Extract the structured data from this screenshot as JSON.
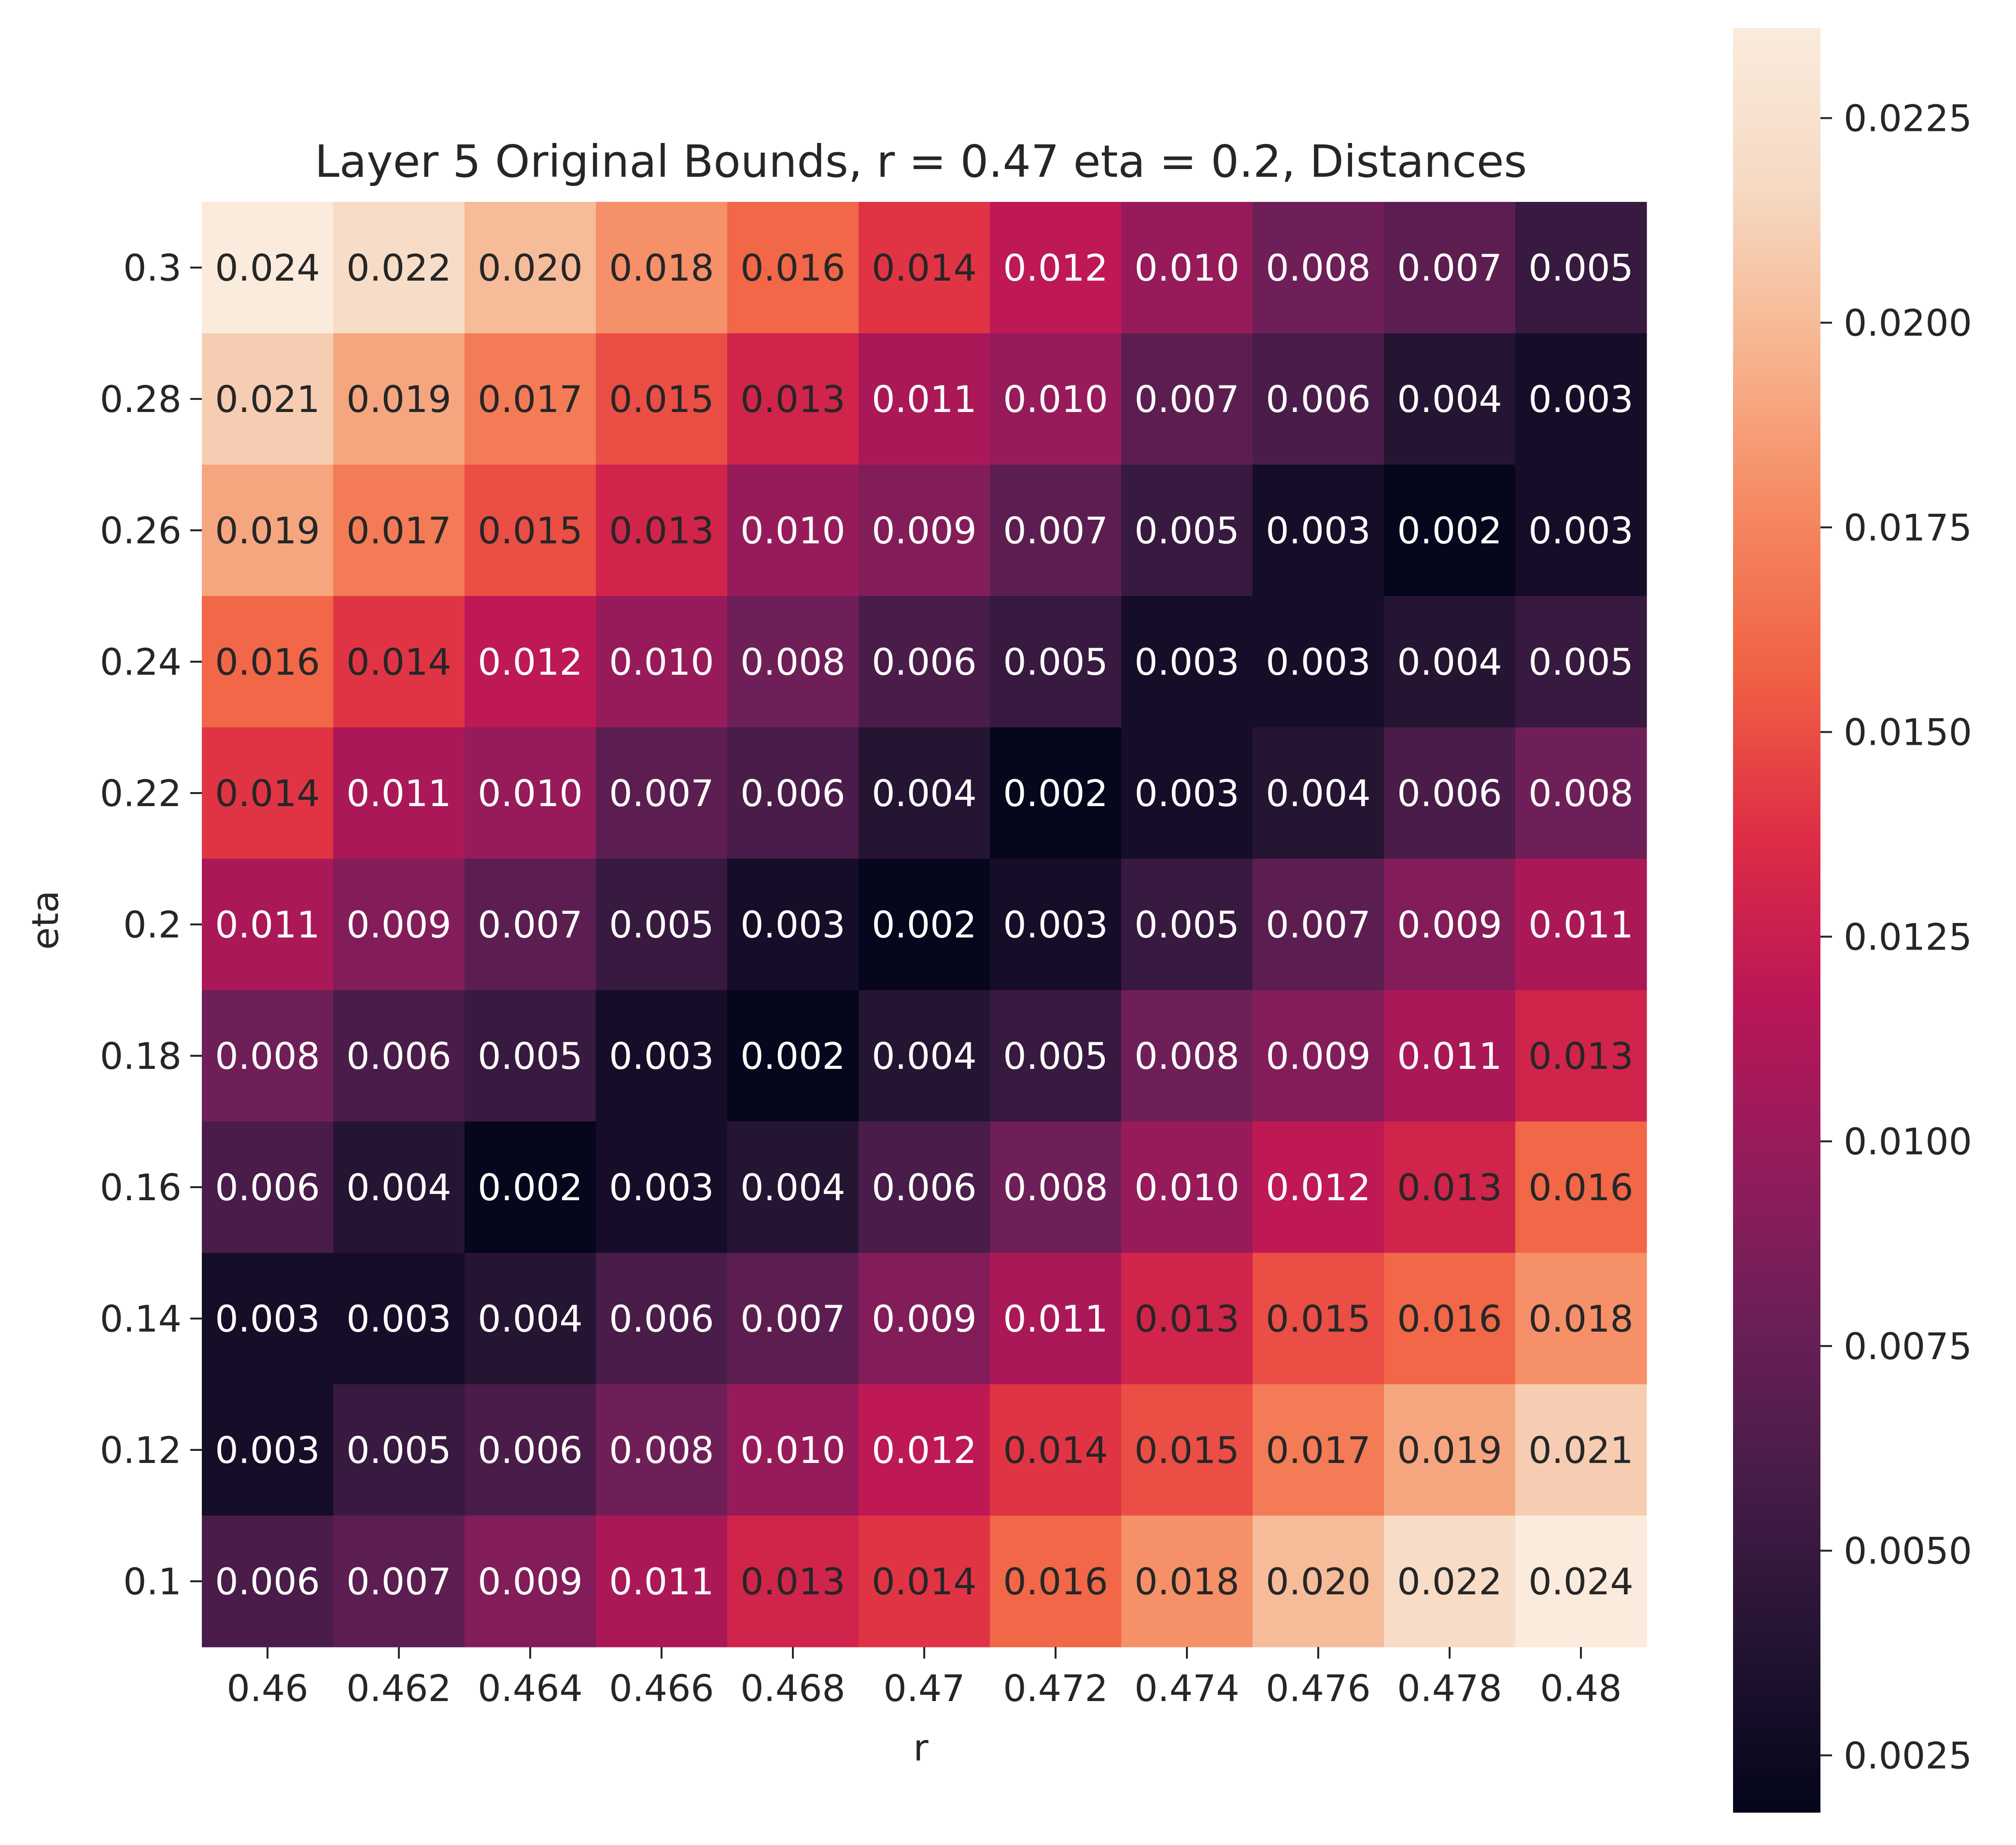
{
  "chart_data": {
    "type": "heatmap",
    "title": "Layer 5 Original Bounds, r = 0.47 eta = 0.2, Distances",
    "xlabel": "r",
    "ylabel": "eta",
    "x_categories": [
      "0.46",
      "0.462",
      "0.464",
      "0.466",
      "0.468",
      "0.47",
      "0.472",
      "0.474",
      "0.476",
      "0.478",
      "0.48"
    ],
    "y_categories": [
      "0.3",
      "0.28",
      "0.26",
      "0.24",
      "0.22",
      "0.2",
      "0.18",
      "0.16",
      "0.14",
      "0.12",
      "0.1"
    ],
    "values": [
      [
        0.024,
        0.022,
        0.02,
        0.018,
        0.016,
        0.014,
        0.012,
        0.01,
        0.008,
        0.007,
        0.005
      ],
      [
        0.021,
        0.019,
        0.017,
        0.015,
        0.013,
        0.011,
        0.01,
        0.007,
        0.006,
        0.004,
        0.003
      ],
      [
        0.019,
        0.017,
        0.015,
        0.013,
        0.01,
        0.009,
        0.007,
        0.005,
        0.003,
        0.002,
        0.003
      ],
      [
        0.016,
        0.014,
        0.012,
        0.01,
        0.008,
        0.006,
        0.005,
        0.003,
        0.003,
        0.004,
        0.005
      ],
      [
        0.014,
        0.011,
        0.01,
        0.007,
        0.006,
        0.004,
        0.002,
        0.003,
        0.004,
        0.006,
        0.008
      ],
      [
        0.011,
        0.009,
        0.007,
        0.005,
        0.003,
        0.002,
        0.003,
        0.005,
        0.007,
        0.009,
        0.011
      ],
      [
        0.008,
        0.006,
        0.005,
        0.003,
        0.002,
        0.004,
        0.005,
        0.008,
        0.009,
        0.011,
        0.013
      ],
      [
        0.006,
        0.004,
        0.002,
        0.003,
        0.004,
        0.006,
        0.008,
        0.01,
        0.012,
        0.013,
        0.016
      ],
      [
        0.003,
        0.003,
        0.004,
        0.006,
        0.007,
        0.009,
        0.011,
        0.013,
        0.015,
        0.016,
        0.018
      ],
      [
        0.003,
        0.005,
        0.006,
        0.008,
        0.01,
        0.012,
        0.014,
        0.015,
        0.017,
        0.019,
        0.021
      ],
      [
        0.006,
        0.007,
        0.009,
        0.011,
        0.013,
        0.014,
        0.016,
        0.018,
        0.02,
        0.022,
        0.024
      ]
    ],
    "cell_labels": [
      [
        "0.024",
        "0.022",
        "0.020",
        "0.018",
        "0.016",
        "0.014",
        "0.012",
        "0.010",
        "0.008",
        "0.007",
        "0.005"
      ],
      [
        "0.021",
        "0.019",
        "0.017",
        "0.015",
        "0.013",
        "0.011",
        "0.010",
        "0.007",
        "0.006",
        "0.004",
        "0.003"
      ],
      [
        "0.019",
        "0.017",
        "0.015",
        "0.013",
        "0.010",
        "0.009",
        "0.007",
        "0.005",
        "0.003",
        "0.002",
        "0.003"
      ],
      [
        "0.016",
        "0.014",
        "0.012",
        "0.010",
        "0.008",
        "0.006",
        "0.005",
        "0.003",
        "0.003",
        "0.004",
        "0.005"
      ],
      [
        "0.014",
        "0.011",
        "0.010",
        "0.007",
        "0.006",
        "0.004",
        "0.002",
        "0.003",
        "0.004",
        "0.006",
        "0.008"
      ],
      [
        "0.011",
        "0.009",
        "0.007",
        "0.005",
        "0.003",
        "0.002",
        "0.003",
        "0.005",
        "0.007",
        "0.009",
        "0.011"
      ],
      [
        "0.008",
        "0.006",
        "0.005",
        "0.003",
        "0.002",
        "0.004",
        "0.005",
        "0.008",
        "0.009",
        "0.011",
        "0.013"
      ],
      [
        "0.006",
        "0.004",
        "0.002",
        "0.003",
        "0.004",
        "0.006",
        "0.008",
        "0.010",
        "0.012",
        "0.013",
        "0.016"
      ],
      [
        "0.003",
        "0.003",
        "0.004",
        "0.006",
        "0.007",
        "0.009",
        "0.011",
        "0.013",
        "0.015",
        "0.016",
        "0.018"
      ],
      [
        "0.003",
        "0.005",
        "0.006",
        "0.008",
        "0.010",
        "0.012",
        "0.014",
        "0.015",
        "0.017",
        "0.019",
        "0.021"
      ],
      [
        "0.006",
        "0.007",
        "0.009",
        "0.011",
        "0.013",
        "0.014",
        "0.016",
        "0.018",
        "0.020",
        "0.022",
        "0.024"
      ]
    ],
    "colorbar": {
      "range": [
        0.0018,
        0.0236
      ],
      "ticks": [
        0.0025,
        0.005,
        0.0075,
        0.01,
        0.0125,
        0.015,
        0.0175,
        0.02,
        0.0225
      ],
      "tick_labels": [
        "0.0025",
        "0.0050",
        "0.0075",
        "0.0100",
        "0.0125",
        "0.0150",
        "0.0175",
        "0.0200",
        "0.0225"
      ]
    },
    "colormap": "rocket",
    "colormap_stops": [
      "#03051a",
      "#221331",
      "#451c47",
      "#6a1f56",
      "#921c5b",
      "#b91657",
      "#dd2c45",
      "#f06043",
      "#f58860",
      "#f6b48e",
      "#f6d9c2",
      "#faebdd"
    ],
    "annotation_text_colors": {
      "dark": "#262626",
      "light": "#ffffff"
    },
    "grid": false,
    "legend": "none"
  }
}
